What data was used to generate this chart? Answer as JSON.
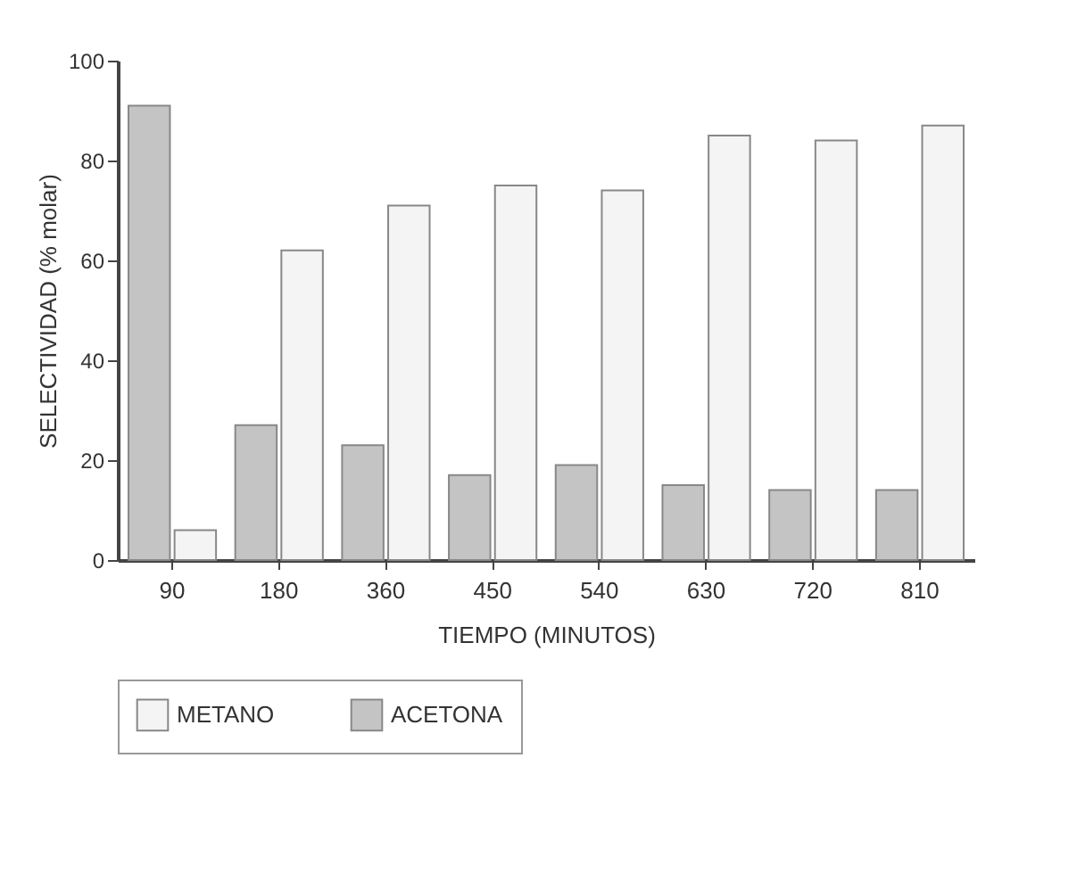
{
  "chart_data": {
    "type": "bar",
    "xlabel": "TIEMPO (MINUTOS)",
    "ylabel": "SELECTIVIDAD (% molar)",
    "categories": [
      "90",
      "180",
      "360",
      "450",
      "540",
      "630",
      "720",
      "810"
    ],
    "series": [
      {
        "name": "METANO",
        "color": "#f4f4f4",
        "values": [
          6,
          62,
          71,
          75,
          74,
          85,
          84,
          87
        ]
      },
      {
        "name": "ACETONA",
        "color": "#c4c4c4",
        "values": [
          91,
          27,
          23,
          17,
          19,
          15,
          14,
          14
        ]
      }
    ],
    "ylim": [
      0,
      100
    ],
    "yticks": [
      0,
      20,
      40,
      60,
      80,
      100
    ],
    "grid": false,
    "legend": "bottom"
  }
}
